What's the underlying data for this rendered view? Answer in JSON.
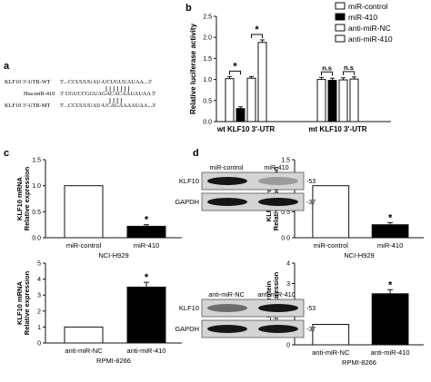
{
  "panels": {
    "a": "a",
    "b": "b",
    "c": "c",
    "d": "d"
  },
  "alignment": {
    "rows": [
      {
        "label": "KLF10 3'-UTR-WT",
        "seq": "5'...CCUUUUAU-UCUGUUAUAA...3'"
      },
      {
        "label": "Hsa-miR-410",
        "seq": "3'   UGUCCGGUAGACACAAUAUAA  5'"
      },
      {
        "label": "KLF10 3'-UTR-MT",
        "seq": "5'...CCUUUUAU-UCAGAAAAUAA...3'"
      }
    ]
  },
  "blots": [
    {
      "headers": [
        "miR-control",
        "miR-410"
      ],
      "rows": [
        {
          "label": "KLF10",
          "mw": "-53",
          "intensity": [
            1.0,
            0.3
          ]
        },
        {
          "label": "GAPDH",
          "mw": "-37",
          "intensity": [
            1.0,
            1.0
          ]
        }
      ]
    },
    {
      "headers": [
        "anti-miR-NC",
        "anti-miR-410"
      ],
      "rows": [
        {
          "label": "KLF10",
          "mw": "-53",
          "intensity": [
            0.55,
            1.0
          ]
        },
        {
          "label": "GAPDH",
          "mw": "-37",
          "intensity": [
            1.0,
            1.0
          ]
        }
      ]
    }
  ],
  "chart_data": [
    {
      "id": "b",
      "type": "bar",
      "ylabel": "Relative luciferase activity",
      "ylim": [
        0,
        2.5
      ],
      "yticks": [
        0.0,
        0.5,
        1.0,
        1.5,
        2.0,
        2.5
      ],
      "groups": [
        {
          "label": "wt KLF10 3'-UTR",
          "values": [
            1.02,
            0.31,
            1.03,
            1.88
          ],
          "errors": [
            0.05,
            0.04,
            0.04,
            0.06
          ]
        },
        {
          "label": "mt KLF10 3'-UTR",
          "values": [
            1.0,
            0.98,
            0.99,
            1.01
          ],
          "errors": [
            0.05,
            0.05,
            0.05,
            0.05
          ]
        }
      ],
      "series": [
        {
          "name": "miR-control",
          "fill": "#ffffff"
        },
        {
          "name": "miR-410",
          "fill": "#000000"
        },
        {
          "name": "anti-miR-NC",
          "fill": "#ffffff"
        },
        {
          "name": "anti-miR-410",
          "fill": "#ffffff"
        }
      ],
      "significance": [
        {
          "group": 0,
          "from": 0,
          "to": 1,
          "text": "*"
        },
        {
          "group": 0,
          "from": 2,
          "to": 3,
          "text": "*"
        },
        {
          "group": 1,
          "from": 0,
          "to": 1,
          "text": "n.s"
        },
        {
          "group": 1,
          "from": 2,
          "to": 3,
          "text": "n.s"
        }
      ],
      "legend": "top-right"
    },
    {
      "id": "c1",
      "type": "bar",
      "ylabel": "Relative expression",
      "ylabel2": "KLF10 mRNA",
      "xlabel": "NCI-H929",
      "categories": [
        "miR-control",
        "miR-410"
      ],
      "values": [
        1.0,
        0.22
      ],
      "errors": [
        0,
        0.03
      ],
      "fills": [
        "#ffffff",
        "#000000"
      ],
      "stars": [
        "",
        "*"
      ],
      "ylim": [
        0,
        1.5
      ],
      "yticks": [
        0.0,
        0.5,
        1.0,
        1.5
      ]
    },
    {
      "id": "c2",
      "type": "bar",
      "ylabel": "Relative expression",
      "ylabel2": "KLF10 mRNA",
      "xlabel": "RPMI-8266",
      "categories": [
        "anti-miR-NC",
        "anti-miR-410"
      ],
      "values": [
        1.0,
        3.5
      ],
      "errors": [
        0,
        0.3
      ],
      "fills": [
        "#ffffff",
        "#000000"
      ],
      "stars": [
        "",
        "*"
      ],
      "ylim": [
        0,
        5
      ],
      "yticks": [
        0,
        1,
        2,
        3,
        4,
        5
      ]
    },
    {
      "id": "d1",
      "type": "bar",
      "ylabel": "Relative expression",
      "ylabel2": "KLF10 protein",
      "xlabel": "NCI-H929",
      "categories": [
        "miR-control",
        "miR-410"
      ],
      "values": [
        1.0,
        0.25
      ],
      "errors": [
        0,
        0.04
      ],
      "fills": [
        "#ffffff",
        "#000000"
      ],
      "stars": [
        "",
        "*"
      ],
      "ylim": [
        0,
        1.5
      ],
      "yticks": [
        0.0,
        0.5,
        1.0,
        1.5
      ]
    },
    {
      "id": "d2",
      "type": "bar",
      "ylabel": "Relative expression",
      "ylabel2": "KLF10 protein",
      "xlabel": "RPMI-8266",
      "categories": [
        "anti-miR-NC",
        "anti-miR-410"
      ],
      "values": [
        1.0,
        2.5
      ],
      "errors": [
        0,
        0.2
      ],
      "fills": [
        "#ffffff",
        "#000000"
      ],
      "stars": [
        "",
        "*"
      ],
      "ylim": [
        0,
        4
      ],
      "yticks": [
        0,
        1,
        2,
        3,
        4
      ]
    }
  ]
}
